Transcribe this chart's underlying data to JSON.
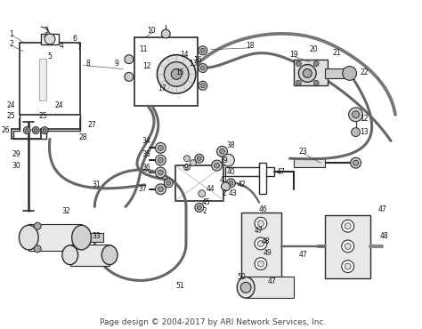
{
  "background_color": "#ffffff",
  "footer_text": "Page design © 2004-2017 by ARI Network Services, Inc.",
  "footer_fontsize": 6.5,
  "footer_color": "#444444",
  "fig_width": 4.74,
  "fig_height": 3.7,
  "dpi": 100,
  "line_color": "#2a2a2a",
  "gray_fill": "#aaaaaa",
  "light_gray": "#cccccc",
  "dark_gray": "#888888"
}
